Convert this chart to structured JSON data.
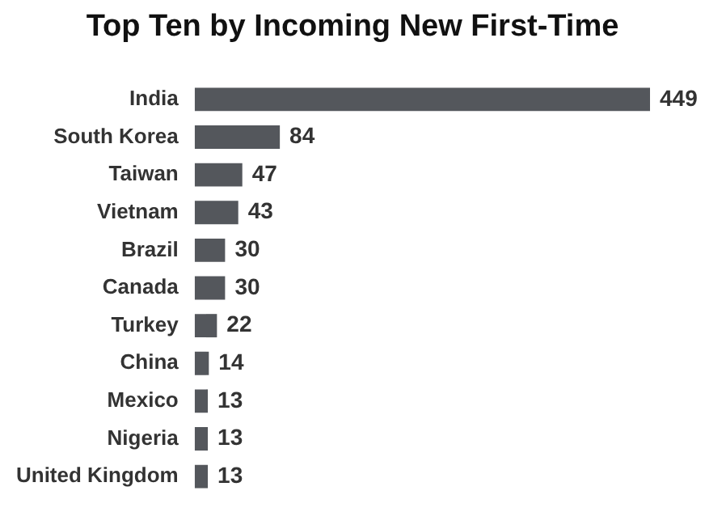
{
  "chart_data": {
    "type": "bar",
    "orientation": "horizontal",
    "title": "Top Ten by Incoming New First-Time",
    "categories": [
      "India",
      "South Korea",
      "Taiwan",
      "Vietnam",
      "Brazil",
      "Canada",
      "Turkey",
      "China",
      "Mexico",
      "Nigeria",
      "United Kingdom"
    ],
    "values": [
      449,
      84,
      47,
      43,
      30,
      30,
      22,
      14,
      13,
      13,
      13
    ],
    "color": "#54575c",
    "data_labels": true,
    "grid": false,
    "legend": false,
    "tick_labels": "y"
  }
}
